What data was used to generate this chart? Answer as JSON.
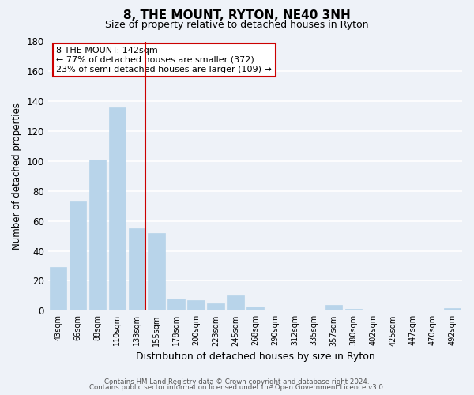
{
  "title": "8, THE MOUNT, RYTON, NE40 3NH",
  "subtitle": "Size of property relative to detached houses in Ryton",
  "xlabel": "Distribution of detached houses by size in Ryton",
  "ylabel": "Number of detached properties",
  "bar_color": "#b8d4ea",
  "categories": [
    "43sqm",
    "66sqm",
    "88sqm",
    "110sqm",
    "133sqm",
    "155sqm",
    "178sqm",
    "200sqm",
    "223sqm",
    "245sqm",
    "268sqm",
    "290sqm",
    "312sqm",
    "335sqm",
    "357sqm",
    "380sqm",
    "402sqm",
    "425sqm",
    "447sqm",
    "470sqm",
    "492sqm"
  ],
  "values": [
    29,
    73,
    101,
    136,
    55,
    52,
    8,
    7,
    5,
    10,
    3,
    0,
    0,
    0,
    4,
    1,
    0,
    0,
    0,
    0,
    2
  ],
  "ylim": [
    0,
    180
  ],
  "yticks": [
    0,
    20,
    40,
    60,
    80,
    100,
    120,
    140,
    160,
    180
  ],
  "marker_bar_index": 4,
  "marker_line_color": "#cc0000",
  "annotation_line1": "8 THE MOUNT: 142sqm",
  "annotation_line2": "← 77% of detached houses are smaller (372)",
  "annotation_line3": "23% of semi-detached houses are larger (109) →",
  "annotation_box_facecolor": "#ffffff",
  "annotation_box_edgecolor": "#cc0000",
  "footer_line1": "Contains HM Land Registry data © Crown copyright and database right 2024.",
  "footer_line2": "Contains public sector information licensed under the Open Government Licence v3.0.",
  "background_color": "#eef2f8",
  "grid_color": "#ffffff",
  "title_fontsize": 11,
  "subtitle_fontsize": 9
}
